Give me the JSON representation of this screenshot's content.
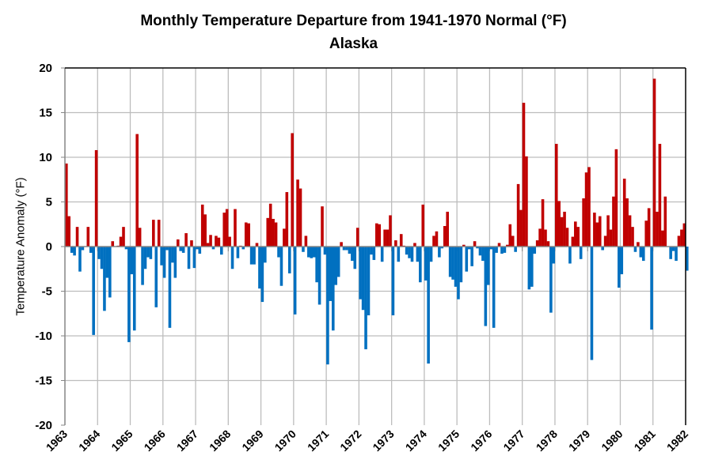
{
  "chart_data": {
    "type": "bar",
    "title": "Monthly Temperature Departure from 1941-1970 Normal (°F)",
    "subtitle": "Alaska",
    "xlabel": "",
    "ylabel": "Temperature Anomaly (°F)",
    "ylim": [
      -20,
      20
    ],
    "yticks": [
      "20",
      "15",
      "10",
      "5",
      "0",
      "-5",
      "-10",
      "-15",
      "-20"
    ],
    "xticks": [
      "1963",
      "1964",
      "1965",
      "1966",
      "1967",
      "1968",
      "1969",
      "1970",
      "1971",
      "1972",
      "1973",
      "1974",
      "1975",
      "1976",
      "1977",
      "1978",
      "1979",
      "1980",
      "1981",
      "1982"
    ],
    "grid": true,
    "positive_color": "#C00000",
    "negative_color": "#0070C0",
    "start": "1963-01",
    "frequency": "monthly",
    "values": [
      9.3,
      3.4,
      -0.7,
      -1.0,
      2.2,
      -2.8,
      -0.4,
      0.0,
      2.2,
      -0.7,
      -9.9,
      10.8,
      -1.4,
      -2.5,
      -7.2,
      -3.5,
      -5.7,
      0.6,
      0.0,
      0.1,
      1.1,
      2.2,
      -0.3,
      -10.7,
      -3.1,
      -9.4,
      12.6,
      2.1,
      -4.3,
      -2.5,
      -1.2,
      -1.4,
      3.0,
      -6.8,
      3.0,
      -2.1,
      -3.5,
      -0.4,
      -9.1,
      -1.8,
      -3.5,
      0.8,
      -0.5,
      -0.7,
      1.5,
      -2.5,
      0.7,
      -2.4,
      -0.3,
      -0.8,
      4.7,
      3.6,
      0.4,
      1.3,
      -0.3,
      1.2,
      1.0,
      -0.9,
      3.8,
      4.2,
      1.1,
      -2.5,
      4.2,
      -1.3,
      0.1,
      -0.3,
      2.7,
      2.6,
      -2.0,
      -2.0,
      0.4,
      -4.7,
      -6.2,
      -1.8,
      3.2,
      4.8,
      3.1,
      2.7,
      -1.2,
      -4.4,
      2.0,
      6.1,
      -3.0,
      12.7,
      -7.6,
      7.5,
      6.5,
      -0.6,
      1.2,
      -1.2,
      -1.3,
      -1.2,
      -4.0,
      -6.5,
      4.5,
      -0.9,
      -13.2,
      -6.1,
      -9.4,
      -4.3,
      -3.4,
      0.5,
      -0.4,
      -0.4,
      -0.8,
      -1.6,
      -2.5,
      2.1,
      -5.9,
      -7.1,
      -11.5,
      -7.7,
      -0.9,
      -1.5,
      2.6,
      2.5,
      -1.7,
      1.9,
      1.9,
      3.5,
      -7.7,
      0.7,
      -1.7,
      1.4,
      0.1,
      -0.9,
      -1.3,
      -1.7,
      0.4,
      -1.7,
      -4.0,
      4.7,
      -3.8,
      -13.1,
      -1.7,
      1.2,
      1.7,
      -1.2,
      -0.2,
      2.3,
      3.9,
      -3.4,
      -3.7,
      -4.5,
      -5.9,
      -4.0,
      0.2,
      -2.8,
      -0.3,
      -2.2,
      0.6,
      -0.2,
      -1.0,
      -1.6,
      -8.9,
      -4.3,
      -0.3,
      -9.1,
      -0.7,
      0.4,
      -0.8,
      -0.7,
      0.2,
      2.5,
      1.2,
      -0.6,
      7.0,
      4.1,
      16.1,
      10.1,
      -4.8,
      -4.5,
      -0.8,
      0.7,
      2.0,
      5.3,
      1.9,
      0.6,
      -7.4,
      -1.9,
      11.5,
      5.1,
      3.3,
      3.9,
      2.1,
      -1.9,
      1.1,
      2.8,
      2.2,
      -1.4,
      5.4,
      8.3,
      8.9,
      -12.7,
      3.8,
      2.7,
      3.4,
      -0.4,
      1.2,
      3.5,
      1.9,
      5.6,
      10.9,
      -4.6,
      -3.1,
      7.6,
      5.4,
      3.5,
      2.2,
      -0.6,
      0.5,
      -1.2,
      -1.6,
      2.9,
      4.3,
      -9.3,
      18.8,
      3.9,
      11.5,
      1.8,
      5.6,
      0.0,
      -1.4,
      -0.5,
      -1.6,
      1.2,
      1.9,
      2.6,
      -2.7
    ]
  }
}
